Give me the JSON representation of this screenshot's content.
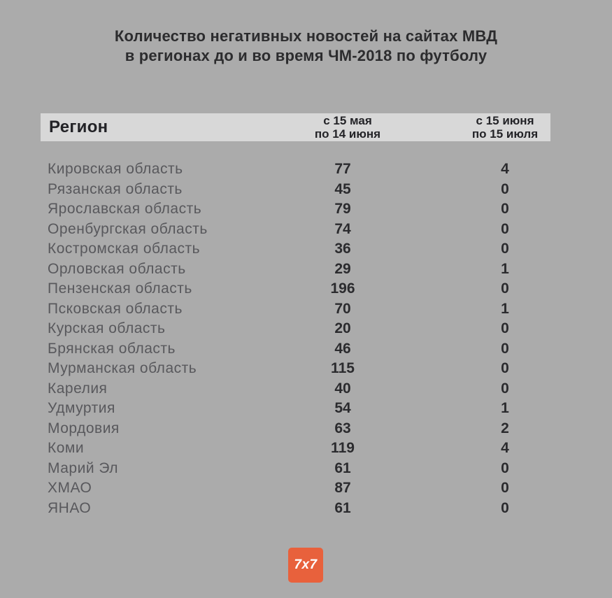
{
  "page": {
    "background_color": "#ababab",
    "header_bar_color": "#d8d8d8",
    "region_text_color": "#58585c",
    "value_text_color": "#2b2b2e"
  },
  "title": {
    "line1": "Количество негативных новостей на сайтах МВД",
    "line2": "в регионах до и во время ЧМ-2018 по футболу"
  },
  "table": {
    "header": {
      "region_label": "Регион",
      "col1_line1": "с 15 мая",
      "col1_line2": "по 14 июня",
      "col2_line1": "с 15 июня",
      "col2_line2": "по 15 июля"
    },
    "rows": [
      {
        "region": "Кировская область",
        "before": 77,
        "during": 4
      },
      {
        "region": "Рязанская область",
        "before": 45,
        "during": 0
      },
      {
        "region": "Ярославская область",
        "before": 79,
        "during": 0
      },
      {
        "region": "Оренбургская область",
        "before": 74,
        "during": 0
      },
      {
        "region": "Костромская область",
        "before": 36,
        "during": 0
      },
      {
        "region": "Орловская область",
        "before": 29,
        "during": 1
      },
      {
        "region": "Пензенская область",
        "before": 196,
        "during": 0
      },
      {
        "region": "Псковская область",
        "before": 70,
        "during": 1
      },
      {
        "region": "Курская область",
        "before": 20,
        "during": 0
      },
      {
        "region": "Брянская область",
        "before": 46,
        "during": 0
      },
      {
        "region": "Мурманская область",
        "before": 115,
        "during": 0
      },
      {
        "region": "Карелия",
        "before": 40,
        "during": 0
      },
      {
        "region": "Удмуртия",
        "before": 54,
        "during": 1
      },
      {
        "region": "Мордовия",
        "before": 63,
        "during": 2
      },
      {
        "region": "Коми",
        "before": 119,
        "during": 4
      },
      {
        "region": "Марий Эл",
        "before": 61,
        "during": 0
      },
      {
        "region": "ХМАО",
        "before": 87,
        "during": 0
      },
      {
        "region": "ЯНАО",
        "before": 61,
        "during": 0
      }
    ]
  },
  "footer": {
    "logo_text": "7x7",
    "logo_color": "#e8613c"
  },
  "chart_data": {
    "type": "table",
    "title": "Количество негативных новостей на сайтах МВД в регионах до и во время ЧМ-2018 по футболу",
    "columns": [
      "Регион",
      "с 15 мая по 14 июня",
      "с 15 июня по 15 июля"
    ],
    "rows": [
      [
        "Кировская область",
        77,
        4
      ],
      [
        "Рязанская область",
        45,
        0
      ],
      [
        "Ярославская область",
        79,
        0
      ],
      [
        "Оренбургская область",
        74,
        0
      ],
      [
        "Костромская область",
        36,
        0
      ],
      [
        "Орловская область",
        29,
        1
      ],
      [
        "Пензенская область",
        196,
        0
      ],
      [
        "Псковская область",
        70,
        1
      ],
      [
        "Курская область",
        20,
        0
      ],
      [
        "Брянская область",
        46,
        0
      ],
      [
        "Мурманская область",
        115,
        0
      ],
      [
        "Карелия",
        40,
        0
      ],
      [
        "Удмуртия",
        54,
        1
      ],
      [
        "Мордовия",
        63,
        2
      ],
      [
        "Коми",
        119,
        4
      ],
      [
        "Марий Эл",
        61,
        0
      ],
      [
        "ХМАО",
        87,
        0
      ],
      [
        "ЯНАО",
        61,
        0
      ]
    ]
  }
}
